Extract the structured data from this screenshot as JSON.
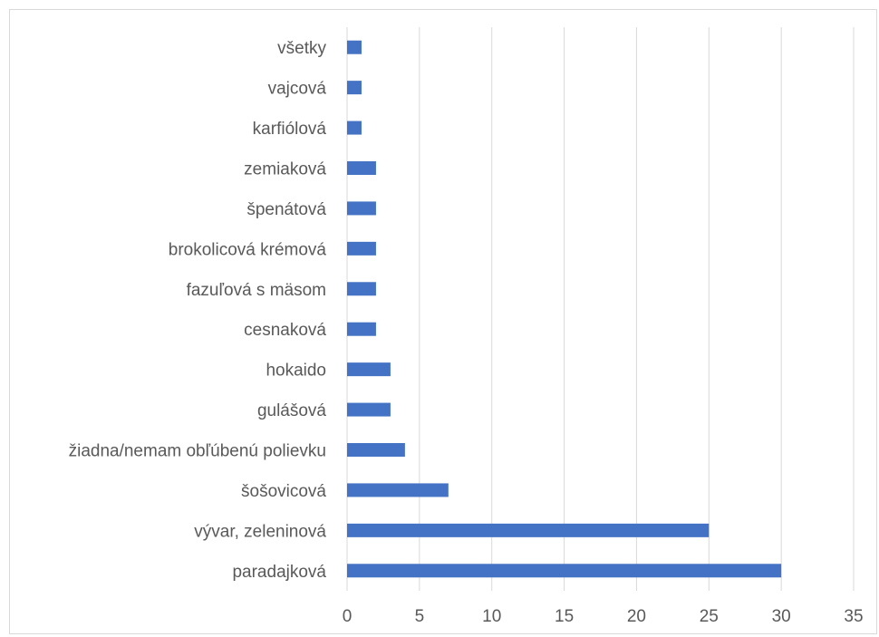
{
  "chart_data": {
    "type": "bar",
    "orientation": "horizontal",
    "categories": [
      "paradajková",
      "vývar, zeleninová",
      "šošovicová",
      "žiadna/nemam obľúbenú polievku",
      "gulášová",
      "hokaido",
      "cesnaková",
      "fazuľová s mäsom",
      "brokolicová krémová",
      "špenátová",
      "zemiaková",
      "karfiólová",
      "vajcová",
      "všetky"
    ],
    "values": [
      30,
      25,
      7,
      4,
      3,
      3,
      2,
      2,
      2,
      2,
      2,
      1,
      1,
      1
    ],
    "xlim": [
      0,
      35
    ],
    "xticks": [
      "0",
      "5",
      "10",
      "15",
      "20",
      "25",
      "30",
      "35"
    ],
    "title": "",
    "xlabel": "",
    "ylabel": "",
    "grid": "vertical",
    "bar_color": "#4472c4",
    "grid_color": "#d9d9d9",
    "text_color": "#595959"
  }
}
